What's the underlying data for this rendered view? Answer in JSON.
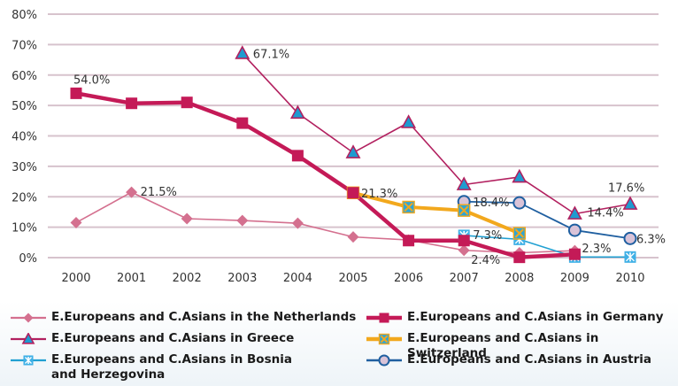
{
  "chart_data": {
    "type": "line",
    "title": "",
    "xlabel": "",
    "ylabel": "",
    "ylim": [
      0,
      80
    ],
    "yticks": [
      "0%",
      "10%",
      "20%",
      "30%",
      "40%",
      "50%",
      "60%",
      "70%",
      "80%"
    ],
    "ytick_values": [
      0,
      10,
      20,
      30,
      40,
      50,
      60,
      70,
      80
    ],
    "x": [
      "2000",
      "2001",
      "2002",
      "2003",
      "2004",
      "2005",
      "2006",
      "2007",
      "2008",
      "2009",
      "2010"
    ],
    "grid": true,
    "legend_position": "bottom",
    "series": [
      {
        "key": "netherlands",
        "name": "E.Europeans and C.Asians in the Netherlands",
        "color": "#d4708f",
        "marker": "diamond",
        "values": [
          11.5,
          21.5,
          12.8,
          12.2,
          11.3,
          6.8,
          5.8,
          2.4,
          1.6,
          2.3,
          null
        ],
        "labels": {
          "1": "21.5%",
          "7": "2.4%",
          "9": "2.3%"
        }
      },
      {
        "key": "germany",
        "name": "E.Europeans and C.Asians in Germany",
        "color": "#c41a57",
        "marker": "square",
        "values": [
          54.0,
          50.7,
          51.0,
          44.2,
          33.5,
          21.3,
          5.6,
          5.6,
          0.1,
          1.1,
          null
        ],
        "labels": {
          "0": "54.0%"
        }
      },
      {
        "key": "greece",
        "name": "E.Europeans and C.Asians in Greece",
        "color": "#b2205f",
        "marker": "triangle",
        "marker_fill": "#1e9bd0",
        "values": [
          null,
          null,
          null,
          67.1,
          47.5,
          34.5,
          44.4,
          24.0,
          26.5,
          14.4,
          17.6
        ],
        "labels": {
          "3": "67.1%",
          "9": "14.4%",
          "10": "17.6%"
        }
      },
      {
        "key": "switzerland",
        "name": "E.Europeans and C.Asians in Switzerland",
        "color": "#f2a81d",
        "marker": "x-square",
        "marker_fill": "#2ea5d6",
        "values": [
          null,
          null,
          null,
          null,
          null,
          21.3,
          16.6,
          15.5,
          8.0,
          null,
          null
        ],
        "labels": {
          "5": "21.3%"
        }
      },
      {
        "key": "bosnia",
        "name": "E.Europeans and C.Asians in Bosnia\nand Herzegovina",
        "color": "#21a0d2",
        "marker": "asterisk-square",
        "marker_fill": "#3fb0e6",
        "values": [
          null,
          null,
          null,
          null,
          null,
          null,
          null,
          7.3,
          6.0,
          0.2,
          0.2
        ],
        "labels": {
          "7": "7.3%"
        }
      },
      {
        "key": "austria",
        "name": "E.Europeans and C.Asians in Austria",
        "color": "#1f5fa0",
        "marker": "circle",
        "marker_fill": "#d9c3d8",
        "values": [
          null,
          null,
          null,
          null,
          null,
          null,
          null,
          18.4,
          18.0,
          9.0,
          6.3
        ],
        "labels": {
          "7": "18.4%",
          "10": "6.3%"
        }
      }
    ]
  }
}
